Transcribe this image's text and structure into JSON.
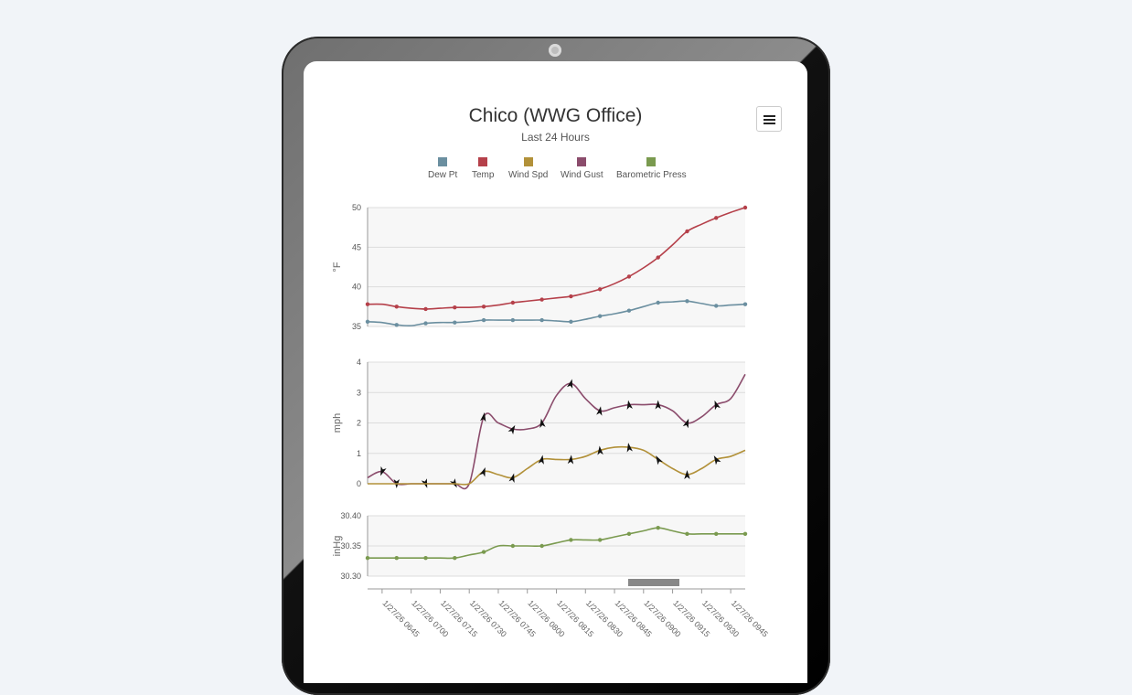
{
  "chart_data": {
    "type": "line",
    "title": "Chico (WWG Office)",
    "subtitle": "Last 24 Hours",
    "legend": [
      {
        "name": "Dew Pt",
        "color": "#6b8fa0"
      },
      {
        "name": "Temp",
        "color": "#b5404a"
      },
      {
        "name": "Wind Spd",
        "color": "#b29139"
      },
      {
        "name": "Wind Gust",
        "color": "#8b4c6c"
      },
      {
        "name": "Barometric Press",
        "color": "#7a9a4f"
      }
    ],
    "x_labels": [
      "1/27/26 0645",
      "1/27/26 0700",
      "1/27/26 0715",
      "1/27/26 0730",
      "1/27/26 0745",
      "1/27/26 0800",
      "1/27/26 0815",
      "1/27/26 0830",
      "1/27/26 0845",
      "1/27/26 0900",
      "1/27/26 0915",
      "1/27/26 0930",
      "1/27/26 0945"
    ],
    "panels": [
      {
        "ylabel": "°F",
        "ylim": [
          35,
          50
        ],
        "ticks": [
          "35",
          "40",
          "45",
          "50"
        ],
        "tick_values": [
          35,
          40,
          45,
          50
        ],
        "grid": true,
        "series": [
          {
            "name": "Temp",
            "color": "#b5404a",
            "marker": "dot",
            "x": [
              0,
              1,
              2,
              3,
              4,
              5,
              6,
              7,
              8,
              9,
              10,
              11,
              12,
              13,
              14,
              15,
              16,
              17,
              18,
              19,
              20,
              21,
              22,
              23,
              24,
              25,
              26
            ],
            "values": [
              37.8,
              37.8,
              37.5,
              37.3,
              37.2,
              37.3,
              37.4,
              37.4,
              37.5,
              37.7,
              38.0,
              38.2,
              38.4,
              38.6,
              38.8,
              39.2,
              39.7,
              40.4,
              41.3,
              42.4,
              43.7,
              45.3,
              47.0,
              47.9,
              48.7,
              49.4,
              50.0
            ]
          },
          {
            "name": "Dew Pt",
            "color": "#6b8fa0",
            "marker": "dot",
            "x": [
              0,
              1,
              2,
              3,
              4,
              5,
              6,
              7,
              8,
              9,
              10,
              11,
              12,
              13,
              14,
              15,
              16,
              17,
              18,
              19,
              20,
              21,
              22,
              23,
              24,
              25,
              26
            ],
            "values": [
              35.6,
              35.5,
              35.2,
              35.1,
              35.4,
              35.5,
              35.5,
              35.6,
              35.8,
              35.8,
              35.8,
              35.8,
              35.8,
              35.7,
              35.6,
              35.9,
              36.3,
              36.6,
              37.0,
              37.5,
              38.0,
              38.1,
              38.2,
              37.9,
              37.6,
              37.7,
              37.8
            ]
          }
        ]
      },
      {
        "ylabel": "mph",
        "ylim": [
          0,
          4
        ],
        "ticks": [
          "0",
          "1",
          "2",
          "3",
          "4"
        ],
        "tick_values": [
          0,
          1,
          2,
          3,
          4
        ],
        "grid": true,
        "series": [
          {
            "name": "Wind Gust",
            "color": "#8b4c6c",
            "marker": "arrow",
            "x": [
              0,
              1,
              2,
              3,
              4,
              5,
              6,
              7,
              8,
              9,
              10,
              11,
              12,
              13,
              14,
              15,
              16,
              17,
              18,
              19,
              20,
              21,
              22,
              23,
              24,
              25,
              26
            ],
            "values": [
              0.2,
              0.4,
              0.0,
              0.0,
              0.0,
              0.0,
              0.0,
              0.0,
              2.2,
              2.0,
              1.8,
              1.8,
              2.0,
              2.9,
              3.3,
              2.8,
              2.4,
              2.5,
              2.6,
              2.6,
              2.6,
              2.4,
              2.0,
              2.2,
              2.6,
              2.8,
              3.6
            ],
            "arrow_angles": {
              "1": 200,
              "2": 180,
              "4": 160,
              "6": 150,
              "8": 10,
              "10": 30,
              "12": 350,
              "14": 15,
              "16": 10,
              "18": 350,
              "20": 0,
              "22": 20,
              "24": 340
            }
          },
          {
            "name": "Wind Spd",
            "color": "#b29139",
            "marker": "arrow",
            "x": [
              0,
              1,
              2,
              3,
              4,
              5,
              6,
              7,
              8,
              9,
              10,
              11,
              12,
              13,
              14,
              15,
              16,
              17,
              18,
              19,
              20,
              21,
              22,
              23,
              24,
              25,
              26
            ],
            "values": [
              0.0,
              0.0,
              0.0,
              0.0,
              0.0,
              0.0,
              0.0,
              0.0,
              0.4,
              0.3,
              0.2,
              0.5,
              0.8,
              0.8,
              0.8,
              0.9,
              1.1,
              1.2,
              1.2,
              1.1,
              0.8,
              0.5,
              0.3,
              0.5,
              0.8,
              0.9,
              1.1
            ],
            "arrow_angles": {
              "8": 20,
              "10": 15,
              "12": 10,
              "14": 5,
              "16": 355,
              "18": 350,
              "20": 330,
              "22": 0,
              "24": 330
            }
          }
        ]
      },
      {
        "ylabel": "inHg",
        "ylim": [
          30.3,
          30.4
        ],
        "ticks": [
          "30.30",
          "30.35",
          "30.40"
        ],
        "tick_values": [
          30.3,
          30.35,
          30.4
        ],
        "grid": true,
        "series": [
          {
            "name": "Barometric Press",
            "color": "#7a9a4f",
            "marker": "dot",
            "x": [
              0,
              1,
              2,
              3,
              4,
              5,
              6,
              7,
              8,
              9,
              10,
              11,
              12,
              13,
              14,
              15,
              16,
              17,
              18,
              19,
              20,
              21,
              22,
              23,
              24,
              25,
              26
            ],
            "values": [
              30.33,
              30.33,
              30.33,
              30.33,
              30.33,
              30.33,
              30.33,
              30.335,
              30.34,
              30.35,
              30.35,
              30.35,
              30.35,
              30.355,
              30.36,
              30.36,
              30.36,
              30.365,
              30.37,
              30.375,
              30.38,
              30.375,
              30.37,
              30.37,
              30.37,
              30.37,
              30.37
            ]
          }
        ]
      }
    ]
  }
}
